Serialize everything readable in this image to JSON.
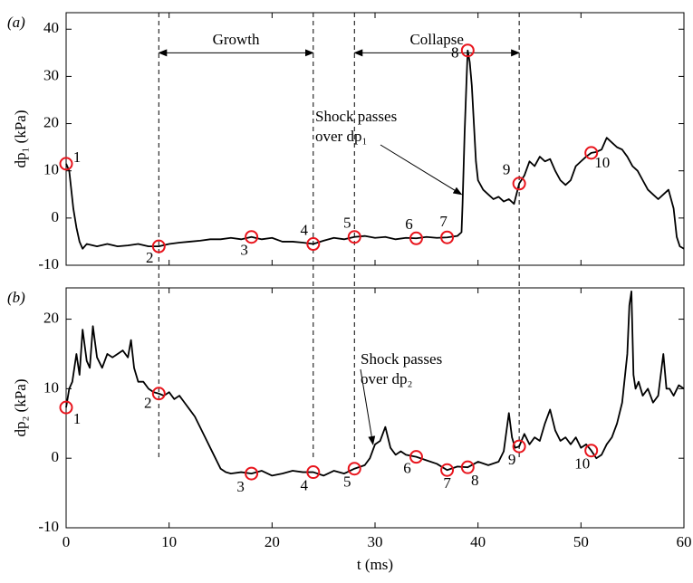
{
  "chart_data": [
    {
      "type": "line",
      "panel_label": "(a)",
      "ylabel": "dp₁ (kPa)",
      "color": "#000000",
      "ylim": [
        -10,
        43.5
      ],
      "yticks": [
        -10,
        0,
        10,
        20,
        30,
        40
      ],
      "xlim": [
        0,
        60
      ],
      "xticks": [
        0,
        10,
        20,
        30,
        40,
        50,
        60
      ],
      "x": [
        0,
        0.3,
        0.7,
        1,
        1.3,
        1.6,
        2,
        3,
        4,
        5,
        6,
        7,
        8,
        9,
        10,
        11,
        12,
        13,
        14,
        15,
        16,
        17,
        18,
        19,
        20,
        21,
        22,
        23,
        24,
        25,
        26,
        27,
        28,
        29,
        30,
        31,
        32,
        33,
        34,
        35,
        36,
        37,
        38,
        38.4,
        38.5,
        38.7,
        38.9,
        39,
        39.2,
        39.4,
        39.6,
        39.8,
        40,
        40.5,
        41,
        41.5,
        42,
        42.5,
        43,
        43.5,
        44,
        44.5,
        45,
        45.5,
        46,
        46.5,
        47,
        47.5,
        48,
        48.5,
        49,
        49.5,
        50,
        50.5,
        51,
        51.5,
        52,
        52.5,
        53,
        53.5,
        54,
        54.5,
        55,
        55.5,
        56,
        56.5,
        57,
        57.5,
        58,
        58.5,
        59,
        59.3,
        59.6,
        60
      ],
      "values": [
        11.5,
        10,
        2,
        -2,
        -5,
        -6.5,
        -5.5,
        -6,
        -5.5,
        -6,
        -5.8,
        -5.5,
        -6,
        -6,
        -5.5,
        -5.2,
        -5,
        -4.8,
        -4.5,
        -4.5,
        -4.2,
        -4.5,
        -4,
        -4.5,
        -4.2,
        -5,
        -5,
        -5.2,
        -5.5,
        -4.8,
        -4.2,
        -4.5,
        -4,
        -3.8,
        -4.2,
        -4,
        -4.5,
        -4.2,
        -4.3,
        -4,
        -4.2,
        -4.1,
        -3.8,
        -3,
        3,
        18,
        30,
        35.5,
        33,
        28,
        20,
        12,
        8,
        6,
        5,
        4,
        4.5,
        3.5,
        4,
        3,
        7.3,
        9,
        12,
        11,
        13,
        12,
        12.5,
        10,
        8,
        7,
        8,
        11,
        12,
        13,
        13.8,
        14,
        14.5,
        17,
        16,
        15,
        14.5,
        13,
        11,
        10,
        8,
        6,
        5,
        4,
        5,
        6,
        2,
        -4,
        -6,
        -6.5
      ],
      "markers": {
        "color": "#e8141c",
        "x": [
          0,
          9,
          18,
          24,
          28,
          34,
          37,
          39,
          44,
          51
        ],
        "values": [
          11.5,
          -6,
          -4,
          -5.5,
          -4,
          -4.3,
          -4.1,
          35.5,
          7.3,
          13.8
        ],
        "labels": [
          "1",
          "2",
          "3",
          "4",
          "5",
          "6",
          "7",
          "8",
          "9",
          "10"
        ]
      },
      "vlines": [
        9,
        24,
        28,
        44
      ],
      "spans": [
        {
          "label": "Growth",
          "from": 9,
          "to": 24,
          "y": 35
        },
        {
          "label": "Collapse",
          "from": 28,
          "to": 44,
          "y": 35
        }
      ],
      "annotation": {
        "text": [
          "Shock passes",
          "over dp₁"
        ],
        "x": 38.4,
        "y": 5
      }
    },
    {
      "type": "line",
      "panel_label": "(b)",
      "ylabel": "dp₂ (kPa)",
      "xlabel": "t (ms)",
      "color": "#000000",
      "ylim": [
        -10,
        24.5
      ],
      "yticks": [
        -10,
        0,
        10,
        20
      ],
      "xlim": [
        0,
        60
      ],
      "xticks": [
        0,
        10,
        20,
        30,
        40,
        50,
        60
      ],
      "x": [
        0,
        0.3,
        0.6,
        1,
        1.3,
        1.6,
        2,
        2.3,
        2.6,
        3,
        3.5,
        4,
        4.5,
        5,
        5.5,
        6,
        6.3,
        6.6,
        7,
        7.5,
        8,
        8.5,
        9,
        9.5,
        10,
        10.5,
        11,
        11.5,
        12,
        12.5,
        13,
        13.5,
        14,
        14.5,
        15,
        15.5,
        16,
        17,
        18,
        19,
        20,
        21,
        22,
        23,
        24,
        25,
        26,
        27,
        28,
        29,
        29.5,
        30,
        30.5,
        31,
        31.5,
        32,
        32.5,
        33,
        34,
        35,
        36,
        37,
        38,
        39,
        40,
        41,
        42,
        42.5,
        43,
        43.3,
        43.6,
        44,
        44.5,
        45,
        45.5,
        46,
        46.5,
        47,
        47.5,
        48,
        48.5,
        49,
        49.5,
        50,
        50.5,
        51,
        51.5,
        52,
        52.5,
        53,
        53.5,
        54,
        54.5,
        54.7,
        54.9,
        55.1,
        55.3,
        55.6,
        56,
        56.5,
        57,
        57.5,
        58,
        58.3,
        58.6,
        59,
        59.5,
        60
      ],
      "values": [
        7.3,
        10,
        11,
        15,
        12,
        18.5,
        14,
        13,
        19,
        14.5,
        13,
        15,
        14.5,
        15,
        15.5,
        14.5,
        17,
        13,
        11,
        11,
        10,
        9.5,
        9.3,
        9,
        9.5,
        8.5,
        9,
        8,
        7,
        6,
        4.5,
        3,
        1.5,
        0,
        -1.5,
        -2,
        -2.2,
        -2,
        -2.2,
        -1.8,
        -2.5,
        -2.2,
        -1.8,
        -2,
        -2,
        -2.5,
        -1.8,
        -2.2,
        -1.5,
        -1,
        0,
        2,
        2.5,
        4.5,
        1.5,
        0.5,
        1,
        0.5,
        0.2,
        -0.3,
        -0.8,
        -1.7,
        -1.2,
        -1.3,
        -0.5,
        -1,
        -0.5,
        1,
        6.5,
        3,
        1.5,
        1.7,
        3.5,
        2,
        3,
        2.5,
        5,
        7,
        4,
        2.5,
        3,
        2,
        3,
        1.5,
        2,
        1.1,
        0,
        0.5,
        2,
        3,
        5,
        8,
        15,
        22,
        24,
        12,
        10,
        11,
        9,
        10,
        8,
        9,
        15,
        10,
        10,
        9,
        10.5,
        10
      ],
      "markers": {
        "color": "#e8141c",
        "x": [
          0,
          9,
          18,
          24,
          28,
          34,
          37,
          39,
          44,
          51
        ],
        "values": [
          7.3,
          9.3,
          -2.2,
          -2,
          -1.5,
          0.2,
          -1.7,
          -1.3,
          1.7,
          1.1
        ],
        "labels": [
          "1",
          "2",
          "3",
          "4",
          "5",
          "6",
          "7",
          "8",
          "9",
          "10"
        ]
      },
      "vlines": [
        9,
        24,
        28,
        44
      ],
      "annotation": {
        "text": [
          "Shock passes",
          "over dp₂"
        ],
        "x": 29.8,
        "y": 2
      }
    }
  ]
}
